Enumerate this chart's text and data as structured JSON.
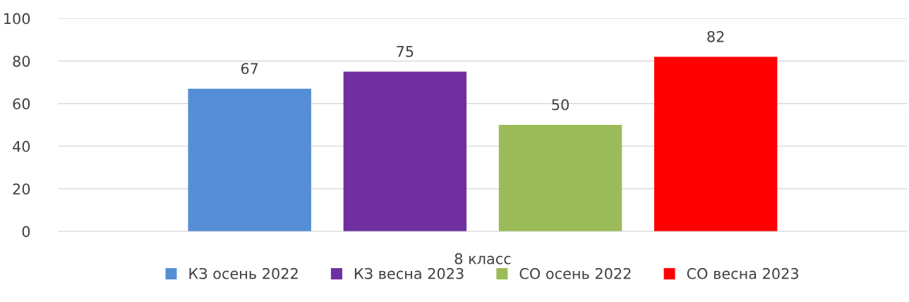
{
  "chart_data": {
    "type": "bar",
    "categories": [
      "8 класс"
    ],
    "series": [
      {
        "name": "КЗ осень 2022",
        "color": "#558ed5",
        "values": [
          67
        ]
      },
      {
        "name": "КЗ весна 2023",
        "color": "#7030a0",
        "values": [
          75
        ]
      },
      {
        "name": "СО осень 2022",
        "color": "#9bbb59",
        "values": [
          50
        ]
      },
      {
        "name": "СО весна 2023",
        "color": "#ff0000",
        "values": [
          82
        ]
      }
    ],
    "ylim": [
      0,
      100
    ],
    "yticks": [
      0,
      20,
      40,
      60,
      80,
      100
    ],
    "grid": "y",
    "legend": "bottom",
    "data_labels": true
  }
}
